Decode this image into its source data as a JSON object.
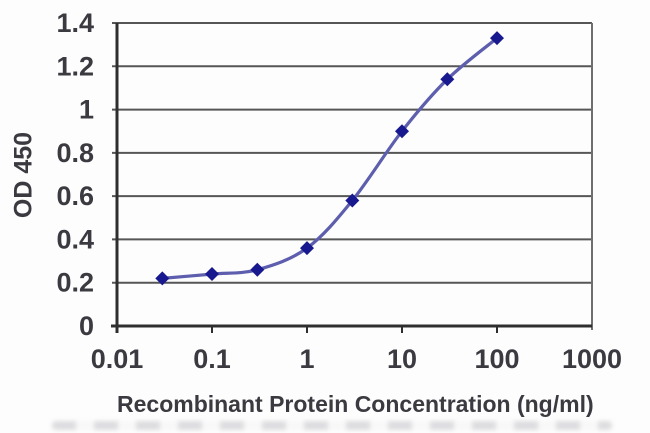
{
  "figure": {
    "title": "",
    "xlabel": "Recombinant Protein Concentration (ng/ml)",
    "ylabel": "OD 450"
  },
  "chart_data": {
    "type": "line",
    "title": "",
    "xlabel": "Recombinant Protein Concentration (ng/ml)",
    "ylabel": "OD 450",
    "x_scale": "log",
    "x": [
      0.03,
      0.1,
      0.3,
      1,
      3,
      10,
      30,
      100
    ],
    "y": [
      0.22,
      0.24,
      0.26,
      0.36,
      0.58,
      0.9,
      1.14,
      1.33
    ],
    "xlim": [
      0.01,
      1000
    ],
    "ylim": [
      0,
      1.4
    ],
    "x_ticks": [
      "0.01",
      "0.1",
      "1",
      "10",
      "100",
      "1000"
    ],
    "y_ticks": [
      "0",
      "0.2",
      "0.4",
      "0.6",
      "0.8",
      "1",
      "1.2",
      "1.4"
    ],
    "grid": "horizontal",
    "legend_position": "none",
    "marker": "diamond",
    "line_smooth": true,
    "colors": {
      "line": "#5d5ead",
      "marker": "#18188f",
      "grid": "#565656",
      "axis": "#2e2e2e",
      "plot_border_right": "#6f6f6f",
      "text": "#3a3a40",
      "background": "#fdfdfd"
    }
  }
}
